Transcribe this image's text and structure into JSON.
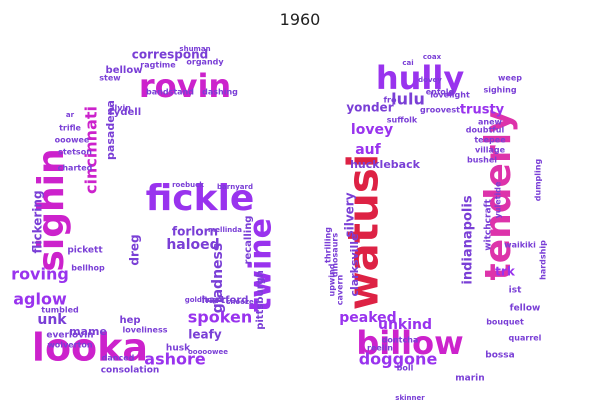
{
  "title": "1960",
  "palette": {
    "magenta": "#cc22cc",
    "violet": "#9933ee",
    "purple": "#7a3fd6",
    "pink": "#dd33aa",
    "red": "#dd2244"
  },
  "words": [
    {
      "text": "fickle",
      "color": "violet"
    },
    {
      "text": "looka",
      "color": "magenta"
    },
    {
      "text": "rovin",
      "color": "magenta"
    },
    {
      "text": "sighin",
      "color": "magenta"
    },
    {
      "text": "twine",
      "color": "violet"
    },
    {
      "text": "cincinnati",
      "color": "magenta"
    },
    {
      "text": "pasadena",
      "color": "purple"
    },
    {
      "text": "correspond",
      "color": "purple"
    },
    {
      "text": "bellow",
      "color": "purple"
    },
    {
      "text": "ragtime",
      "color": "purple"
    },
    {
      "text": "organdy",
      "color": "purple"
    },
    {
      "text": "rydell",
      "color": "purple"
    },
    {
      "text": "bandstand",
      "color": "purple"
    },
    {
      "text": "dashing",
      "color": "purple"
    },
    {
      "text": "stew",
      "color": "purple"
    },
    {
      "text": "alvin",
      "color": "purple"
    },
    {
      "text": "ar",
      "color": "purple"
    },
    {
      "text": "trifle",
      "color": "purple"
    },
    {
      "text": "ooowee",
      "color": "purple"
    },
    {
      "text": "stetson",
      "color": "purple"
    },
    {
      "text": "charted",
      "color": "purple"
    },
    {
      "text": "flickering",
      "color": "purple"
    },
    {
      "text": "pickett",
      "color": "purple"
    },
    {
      "text": "bellhop",
      "color": "purple"
    },
    {
      "text": "roving",
      "color": "violet"
    },
    {
      "text": "aglow",
      "color": "violet"
    },
    {
      "text": "unk",
      "color": "purple"
    },
    {
      "text": "everlovin",
      "color": "purple"
    },
    {
      "text": "tumbled",
      "color": "purple"
    },
    {
      "text": "wolverton",
      "color": "purple"
    },
    {
      "text": "hep",
      "color": "purple"
    },
    {
      "text": "mame",
      "color": "purple"
    },
    {
      "text": "danced",
      "color": "purple"
    },
    {
      "text": "consolation",
      "color": "purple"
    },
    {
      "text": "ashore",
      "color": "violet"
    },
    {
      "text": "loveliness",
      "color": "purple"
    },
    {
      "text": "leafy",
      "color": "purple"
    },
    {
      "text": "husk",
      "color": "purple"
    },
    {
      "text": "spoken",
      "color": "violet"
    },
    {
      "text": "hartford",
      "color": "purple"
    },
    {
      "text": "gladness",
      "color": "purple"
    },
    {
      "text": "haloed",
      "color": "purple"
    },
    {
      "text": "forlorn",
      "color": "purple"
    },
    {
      "text": "recalling",
      "color": "purple"
    },
    {
      "text": "pittsburgh",
      "color": "purple"
    },
    {
      "text": "dreg",
      "color": "purple"
    },
    {
      "text": "watusi",
      "color": "red"
    },
    {
      "text": "billow",
      "color": "magenta"
    },
    {
      "text": "tenderly",
      "color": "pink"
    },
    {
      "text": "hully",
      "color": "violet"
    },
    {
      "text": "indianapolis",
      "color": "purple"
    },
    {
      "text": "doggone",
      "color": "violet"
    },
    {
      "text": "peaked",
      "color": "violet"
    },
    {
      "text": "unkind",
      "color": "violet"
    },
    {
      "text": "lulu",
      "color": "purple"
    },
    {
      "text": "lovey",
      "color": "violet"
    },
    {
      "text": "yonder",
      "color": "purple"
    },
    {
      "text": "auf",
      "color": "violet"
    },
    {
      "text": "silvery",
      "color": "purple"
    },
    {
      "text": "clarksville",
      "color": "purple"
    },
    {
      "text": "huckleback",
      "color": "purple"
    },
    {
      "text": "trusty",
      "color": "violet"
    },
    {
      "text": "lovelight",
      "color": "purple"
    },
    {
      "text": "sighing",
      "color": "purple"
    },
    {
      "text": "weep",
      "color": "purple"
    },
    {
      "text": "anew",
      "color": "purple"
    },
    {
      "text": "doubtful",
      "color": "purple"
    },
    {
      "text": "teepee",
      "color": "purple"
    },
    {
      "text": "village",
      "color": "purple"
    },
    {
      "text": "bushel",
      "color": "purple"
    },
    {
      "text": "dumpling",
      "color": "purple"
    },
    {
      "text": "hardship",
      "color": "purple"
    },
    {
      "text": "witchcraft",
      "color": "purple"
    },
    {
      "text": "yuletide",
      "color": "purple"
    },
    {
      "text": "waikiki",
      "color": "purple"
    },
    {
      "text": "trk",
      "color": "violet"
    },
    {
      "text": "ist",
      "color": "purple"
    },
    {
      "text": "fellow",
      "color": "purple"
    },
    {
      "text": "bouquet",
      "color": "purple"
    },
    {
      "text": "quarrel",
      "color": "purple"
    },
    {
      "text": "bossa",
      "color": "purple"
    },
    {
      "text": "marin",
      "color": "purple"
    },
    {
      "text": "boll",
      "color": "purple"
    },
    {
      "text": "reelin",
      "color": "purple"
    },
    {
      "text": "cavern",
      "color": "purple"
    },
    {
      "text": "upwind",
      "color": "purple"
    },
    {
      "text": "thrilling",
      "color": "purple"
    },
    {
      "text": "dinosaurs",
      "color": "purple"
    },
    {
      "text": "suffolk",
      "color": "purple"
    },
    {
      "text": "fro",
      "color": "purple"
    },
    {
      "text": "enfold",
      "color": "purple"
    },
    {
      "text": "groovest",
      "color": "purple"
    },
    {
      "text": "dovey",
      "color": "purple"
    },
    {
      "text": "coax",
      "color": "purple"
    },
    {
      "text": "cai",
      "color": "purple"
    },
    {
      "text": "skinner",
      "color": "purple"
    },
    {
      "text": "dontcha",
      "color": "purple"
    },
    {
      "text": "ooooowee",
      "color": "purple"
    },
    {
      "text": "shuman",
      "color": "purple"
    },
    {
      "text": "roebuck",
      "color": "purple"
    },
    {
      "text": "barnyard",
      "color": "purple"
    },
    {
      "text": "mellinda",
      "color": "purple"
    },
    {
      "text": "goldfinger",
      "color": "purple"
    },
    {
      "text": "snooze",
      "color": "purple"
    }
  ]
}
